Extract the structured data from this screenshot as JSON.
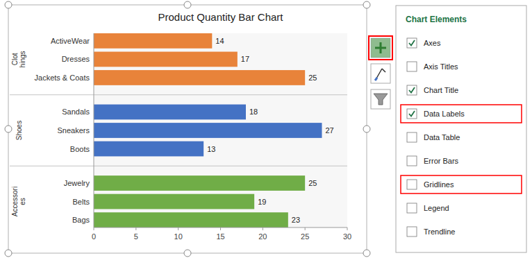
{
  "chart_data": {
    "type": "bar",
    "orientation": "horizontal",
    "title": "Product Quantity Bar Chart",
    "categories": [
      "ActiveWear",
      "Dresses",
      "Jackets & Coats",
      "Sandals",
      "Sneakers",
      "Boots",
      "Jewelry",
      "Belts",
      "Bags"
    ],
    "values": [
      14,
      17,
      25,
      18,
      27,
      13,
      25,
      19,
      23
    ],
    "colors": [
      "#E8833A",
      "#E8833A",
      "#E8833A",
      "#4472C4",
      "#4472C4",
      "#4472C4",
      "#70AD47",
      "#70AD47",
      "#70AD47"
    ],
    "group_labels": [
      "Clot\nhings",
      "Shoes",
      "Accessori\nes"
    ],
    "xlim": [
      0,
      30
    ],
    "xticks": [
      0,
      5,
      10,
      15,
      20,
      25,
      30
    ],
    "data_labels": true,
    "grid": false,
    "chart_elements": {
      "title": "Chart Elements",
      "items": [
        {
          "label": "Axes",
          "checked": true,
          "highlighted": false
        },
        {
          "label": "Axis Titles",
          "checked": false,
          "highlighted": false
        },
        {
          "label": "Chart Title",
          "checked": true,
          "highlighted": false
        },
        {
          "label": "Data Labels",
          "checked": true,
          "highlighted": true
        },
        {
          "label": "Data Table",
          "checked": false,
          "highlighted": false
        },
        {
          "label": "Error Bars",
          "checked": false,
          "highlighted": false
        },
        {
          "label": "Gridlines",
          "checked": false,
          "highlighted": true
        },
        {
          "label": "Legend",
          "checked": false,
          "highlighted": false
        },
        {
          "label": "Trendline",
          "checked": false,
          "highlighted": false
        }
      ]
    }
  }
}
